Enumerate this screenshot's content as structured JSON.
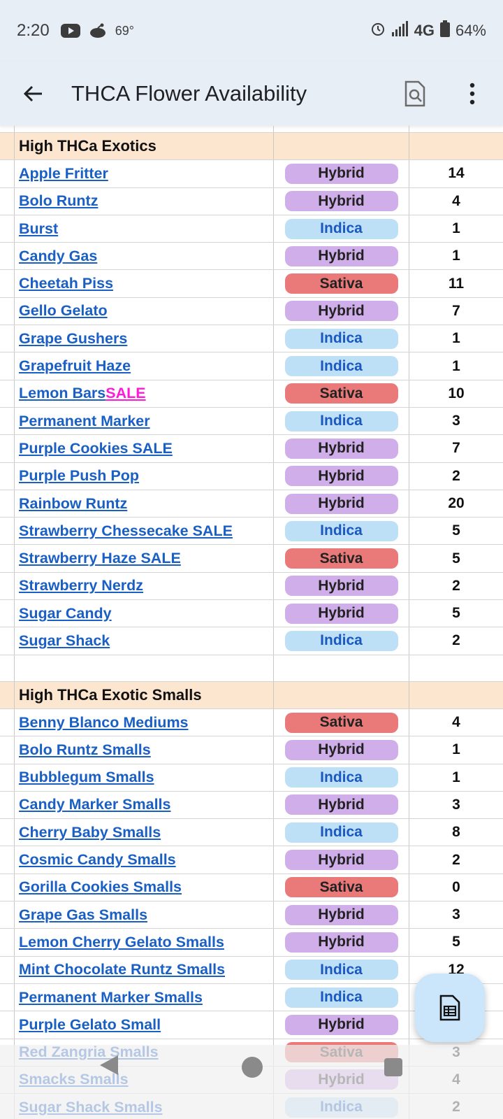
{
  "status": {
    "time": "2:20",
    "temp": "69°",
    "network": "4G",
    "battery": "64%"
  },
  "appbar": {
    "title": "THCA Flower Availability"
  },
  "sections": [
    {
      "header": "High THCa Exotics",
      "rows": [
        {
          "name": "Apple Fritter",
          "type": "Hybrid",
          "qty": "14"
        },
        {
          "name": "Bolo Runtz",
          "type": "Hybrid",
          "qty": "4"
        },
        {
          "name": "Burst",
          "type": "Indica",
          "qty": "1"
        },
        {
          "name": "Candy Gas",
          "type": "Hybrid",
          "qty": "1"
        },
        {
          "name": "Cheetah Piss",
          "type": "Sativa",
          "qty": "11"
        },
        {
          "name": "Gello Gelato",
          "type": "Hybrid",
          "qty": "7"
        },
        {
          "name": "Grape Gushers",
          "type": "Indica",
          "qty": "1"
        },
        {
          "name": "Grapefruit Haze",
          "type": "Indica",
          "qty": "1"
        },
        {
          "name": "Lemon Bars ",
          "sale": "SALE",
          "type": "Sativa",
          "qty": "10"
        },
        {
          "name": "Permanent Marker",
          "type": "Indica",
          "qty": "3"
        },
        {
          "name": "Purple Cookies SALE",
          "type": "Hybrid",
          "qty": "7"
        },
        {
          "name": "Purple Push Pop",
          "type": "Hybrid",
          "qty": "2"
        },
        {
          "name": "Rainbow Runtz",
          "type": "Hybrid",
          "qty": "20"
        },
        {
          "name": "Strawberry Chessecake SALE",
          "type": "Indica",
          "qty": "5"
        },
        {
          "name": "Strawberry Haze SALE",
          "type": "Sativa",
          "qty": "5"
        },
        {
          "name": "Strawberry Nerdz",
          "type": "Hybrid",
          "qty": "2"
        },
        {
          "name": "Sugar Candy",
          "type": "Hybrid",
          "qty": "5"
        },
        {
          "name": "Sugar Shack",
          "type": "Indica",
          "qty": "2"
        }
      ]
    },
    {
      "header": "High THCa Exotic Smalls",
      "rows": [
        {
          "name": "Benny Blanco Mediums",
          "type": "Sativa",
          "qty": "4"
        },
        {
          "name": "Bolo Runtz Smalls",
          "type": "Hybrid",
          "qty": "1"
        },
        {
          "name": "Bubblegum Smalls",
          "type": "Indica",
          "qty": "1"
        },
        {
          "name": "Candy Marker Smalls",
          "type": "Hybrid",
          "qty": "3"
        },
        {
          "name": "Cherry Baby Smalls",
          "type": "Indica",
          "qty": "8"
        },
        {
          "name": "Cosmic Candy Smalls",
          "type": "Hybrid",
          "qty": "2"
        },
        {
          "name": "Gorilla Cookies Smalls",
          "type": "Sativa",
          "qty": "0"
        },
        {
          "name": "Grape Gas Smalls",
          "type": "Hybrid",
          "qty": "3"
        },
        {
          "name": "Lemon Cherry Gelato Smalls",
          "type": "Hybrid",
          "qty": "5"
        },
        {
          "name": "Mint Chocolate Runtz Smalls",
          "type": "Indica",
          "qty": "12"
        },
        {
          "name": "Permanent Marker Smalls",
          "type": "Indica",
          "qty": ""
        },
        {
          "name": "Purple Gelato Small",
          "type": "Hybrid",
          "qty": ""
        },
        {
          "name": "Red Zangria Smalls",
          "type": "Sativa",
          "qty": "3"
        },
        {
          "name": "Smacks Smalls",
          "type": "Hybrid",
          "qty": "4"
        },
        {
          "name": "Sugar Shack Smalls",
          "type": "Indica",
          "qty": "2"
        }
      ]
    }
  ],
  "colors": {
    "hybrid": "#cfaeea",
    "indica": "#bde0f6",
    "sativa": "#ea7979",
    "link": "#1a5fc4",
    "sale": "#ff1ad9",
    "header_bg": "#fde6d0"
  },
  "icons": [
    "youtube-icon",
    "reddit-icon",
    "alarm-icon",
    "signal-icon",
    "battery-icon",
    "back-arrow-icon",
    "find-in-page-icon",
    "more-vert-icon",
    "sheets-icon"
  ]
}
